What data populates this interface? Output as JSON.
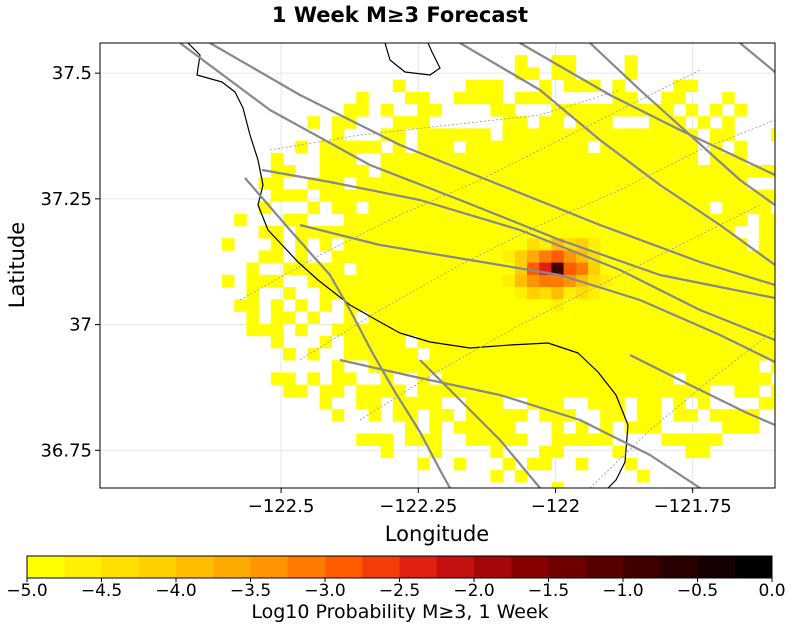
{
  "chart_data": {
    "type": "heatmap",
    "title": "1 Week M≥3 Forecast",
    "xlabel": "Longitude",
    "ylabel": "Latitude",
    "xlim": [
      -122.83,
      -121.6
    ],
    "ylim": [
      36.675,
      37.56
    ],
    "x_ticks": [
      -122.5,
      -122.25,
      -122.0,
      -121.75
    ],
    "x_tick_labels": [
      "−122.5",
      "−122.25",
      "−122",
      "−121.75"
    ],
    "y_ticks": [
      36.75,
      37.0,
      37.25,
      37.5
    ],
    "y_tick_labels": [
      "36.75",
      "37",
      "37.25",
      "37.5"
    ],
    "grid": true,
    "peak": {
      "lon": -122.0,
      "lat": 37.11,
      "value": -0.2
    },
    "colorbar": {
      "label": "Log10 Probability M≥3, 1 Week",
      "range": [
        -5.0,
        0.0
      ],
      "ticks": [
        -5.0,
        -4.5,
        -4.0,
        -3.5,
        -3.0,
        -2.5,
        -2.0,
        -1.5,
        -1.0,
        -0.5,
        0.0
      ],
      "tick_labels": [
        "−5.0",
        "−4.5",
        "−4.0",
        "−3.5",
        "−3.0",
        "−2.5",
        "−2.0",
        "−1.5",
        "−1.0",
        "−0.5",
        "0.0"
      ],
      "colors": [
        "#ffff00",
        "#ffef00",
        "#ffdf00",
        "#ffcf00",
        "#ffbf00",
        "#ffaa00",
        "#ff9500",
        "#ff7a00",
        "#ff5c00",
        "#f53d0a",
        "#e02010",
        "#c41010",
        "#a50808",
        "#8a0000",
        "#6e0000",
        "#560000",
        "#400000",
        "#2a0000",
        "#150000",
        "#000000"
      ]
    },
    "layers": {
      "coastline_color": "#000000",
      "fault_color": "#888888",
      "dotted_fault_color": "#999999"
    }
  }
}
